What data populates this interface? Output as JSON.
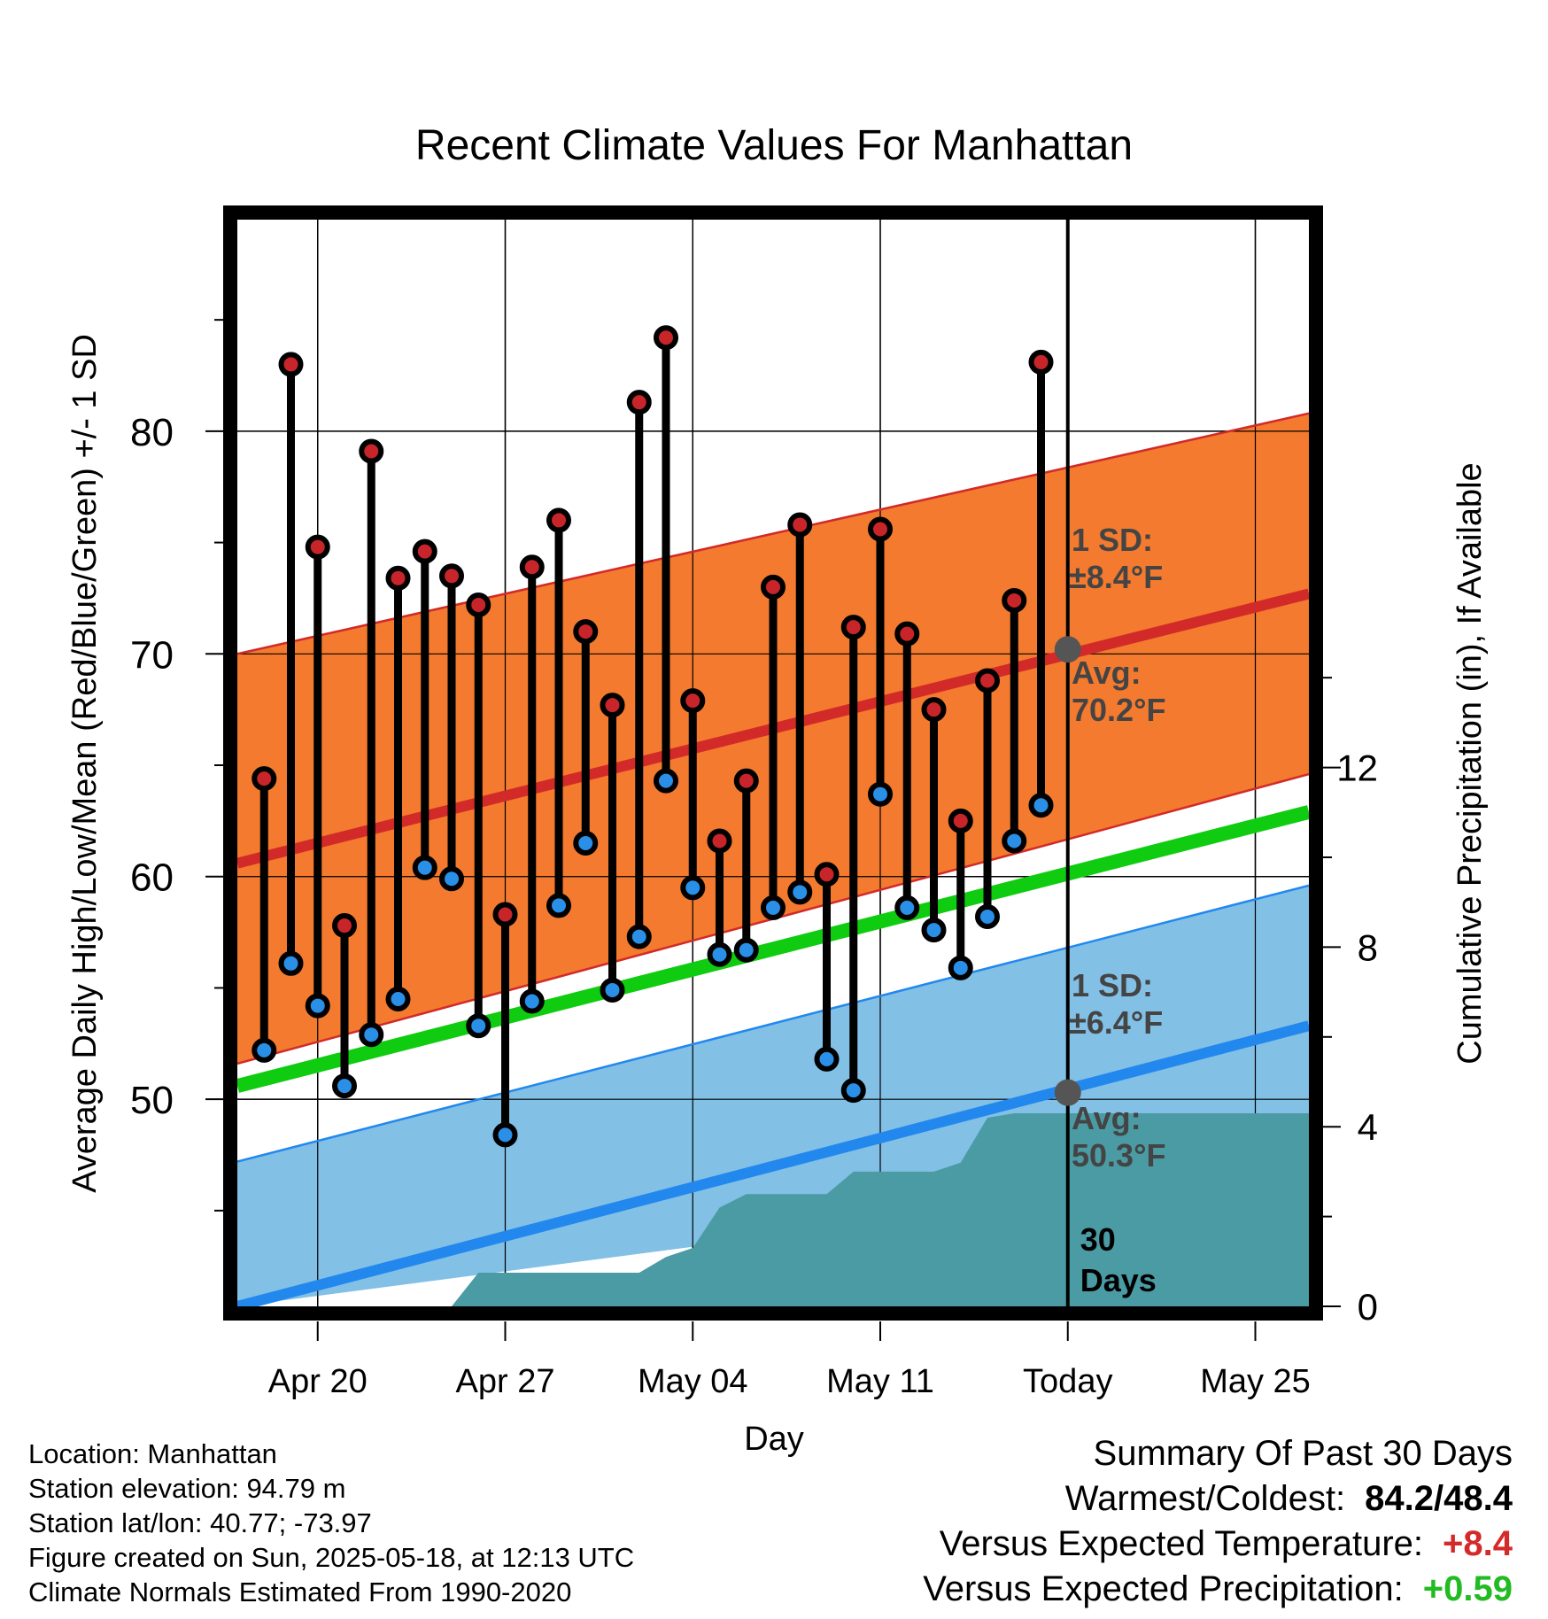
{
  "chart_data": {
    "type": "line",
    "title": "Recent Climate Values For Manhattan",
    "xlabel": "Day",
    "ylabel": "Average Daily High/Low/Mean (Red/Blue/Green) +/- 1 SD",
    "y2label": "Cumulative Precipitation (in), If Available",
    "x_tick_labels": [
      "Apr 20",
      "Apr 27",
      "May 04",
      "May 11",
      "Today",
      "May 25"
    ],
    "x_tick_dates": [
      "2025-04-20",
      "2025-04-27",
      "2025-05-04",
      "2025-05-11",
      "2025-05-18",
      "2025-05-25"
    ],
    "xlim": [
      "2025-04-17",
      "2025-05-27"
    ],
    "y_ticks": [
      50,
      60,
      70,
      80
    ],
    "ylim": [
      40.7,
      89.5
    ],
    "y2_ticks": [
      0,
      4,
      8,
      12
    ],
    "y2lim": [
      0,
      24.2
    ],
    "grid": true,
    "today_marker": "30 Days",
    "annotations": {
      "high_sd": "1 SD:",
      "high_sd_value": "±8.4°F",
      "high_avg": "Avg:",
      "high_avg_value": "70.2°F",
      "low_sd": "1 SD:",
      "low_sd_value": "±6.4°F",
      "low_avg": "Avg:",
      "low_avg_value": "50.3°F"
    },
    "normals": {
      "x": [
        "2025-04-17",
        "2025-05-27"
      ],
      "avg_high": [
        60.6,
        72.7
      ],
      "avg_high_sd_upper": [
        70.0,
        80.8
      ],
      "avg_high_sd_lower": [
        51.6,
        64.6
      ],
      "avg_mean": [
        50.6,
        62.9
      ],
      "avg_low": [
        40.7,
        53.3
      ],
      "avg_low_sd_upper": [
        47.2,
        59.6
      ],
      "avg_low_sd_lower": [
        40.7,
        47.0
      ],
      "colors": {
        "high_band": "#f37a2e",
        "high_line": "#d22a28",
        "mean_line": "#10cc10",
        "low_band": "#82c0e6",
        "low_line": "#2288ee",
        "precip": "#4a9ba4"
      }
    },
    "series": [
      {
        "name": "High",
        "color": "#c8252a",
        "x": [
          "2025-04-18",
          "2025-04-19",
          "2025-04-20",
          "2025-04-21",
          "2025-04-22",
          "2025-04-23",
          "2025-04-24",
          "2025-04-25",
          "2025-04-26",
          "2025-04-27",
          "2025-04-28",
          "2025-04-29",
          "2025-04-30",
          "2025-05-01",
          "2025-05-02",
          "2025-05-03",
          "2025-05-04",
          "2025-05-05",
          "2025-05-06",
          "2025-05-07",
          "2025-05-08",
          "2025-05-09",
          "2025-05-10",
          "2025-05-11",
          "2025-05-12",
          "2025-05-13",
          "2025-05-14",
          "2025-05-15",
          "2025-05-16",
          "2025-05-17"
        ],
        "values": [
          64.4,
          83.0,
          74.8,
          57.8,
          79.1,
          73.4,
          74.6,
          73.5,
          72.2,
          58.3,
          73.9,
          76.0,
          71.0,
          67.7,
          81.3,
          84.2,
          67.9,
          61.6,
          64.3,
          73.0,
          75.8,
          60.1,
          71.2,
          75.6,
          70.9,
          67.5,
          62.5,
          68.8,
          72.4,
          83.1
        ]
      },
      {
        "name": "Low",
        "color": "#2a8fe6",
        "x": [
          "2025-04-18",
          "2025-04-19",
          "2025-04-20",
          "2025-04-21",
          "2025-04-22",
          "2025-04-23",
          "2025-04-24",
          "2025-04-25",
          "2025-04-26",
          "2025-04-27",
          "2025-04-28",
          "2025-04-29",
          "2025-04-30",
          "2025-05-01",
          "2025-05-02",
          "2025-05-03",
          "2025-05-04",
          "2025-05-05",
          "2025-05-06",
          "2025-05-07",
          "2025-05-08",
          "2025-05-09",
          "2025-05-10",
          "2025-05-11",
          "2025-05-12",
          "2025-05-13",
          "2025-05-14",
          "2025-05-15",
          "2025-05-16",
          "2025-05-17"
        ],
        "values": [
          52.2,
          56.1,
          54.2,
          50.6,
          52.9,
          54.5,
          60.4,
          59.9,
          53.3,
          48.4,
          54.4,
          58.7,
          61.5,
          54.9,
          57.3,
          64.3,
          59.5,
          56.5,
          56.7,
          58.6,
          59.3,
          51.8,
          50.4,
          63.7,
          58.6,
          57.6,
          55.9,
          58.2,
          61.6,
          63.2
        ]
      },
      {
        "name": "Cumulative Precipitation",
        "color": "#4a9ba4",
        "x": [
          "2025-04-17",
          "2025-04-25",
          "2025-04-26",
          "2025-05-02",
          "2025-05-03",
          "2025-05-04",
          "2025-05-05",
          "2025-05-06",
          "2025-05-09",
          "2025-05-10",
          "2025-05-13",
          "2025-05-14",
          "2025-05-15",
          "2025-05-16",
          "2025-05-27"
        ],
        "values": [
          0,
          0,
          0.75,
          0.75,
          1.1,
          1.3,
          2.2,
          2.5,
          2.5,
          3.0,
          3.0,
          3.2,
          4.2,
          4.3,
          4.3
        ]
      }
    ],
    "today_values": {
      "avg_high": 70.2,
      "avg_low": 50.3
    }
  },
  "footer": {
    "location": "Location: Manhattan",
    "elevation": "Station elevation: 94.79 m",
    "latlon": "Station lat/lon: 40.77; -73.97",
    "created": "Figure created on Sun, 2025-05-18, at 12:13 UTC",
    "normals_period": "Climate Normals Estimated From 1990-2020"
  },
  "summary": {
    "heading": "Summary Of Past 30 Days",
    "warmest_coldest_label": "Warmest/Coldest:",
    "warmest_coldest_value": "84.2/48.4",
    "temp_label": "Versus Expected Temperature:",
    "temp_value": "+8.4",
    "temp_color": "#d42a2a",
    "precip_label": "Versus Expected Precipitation:",
    "precip_value": "+0.59",
    "precip_color": "#22bb22"
  }
}
